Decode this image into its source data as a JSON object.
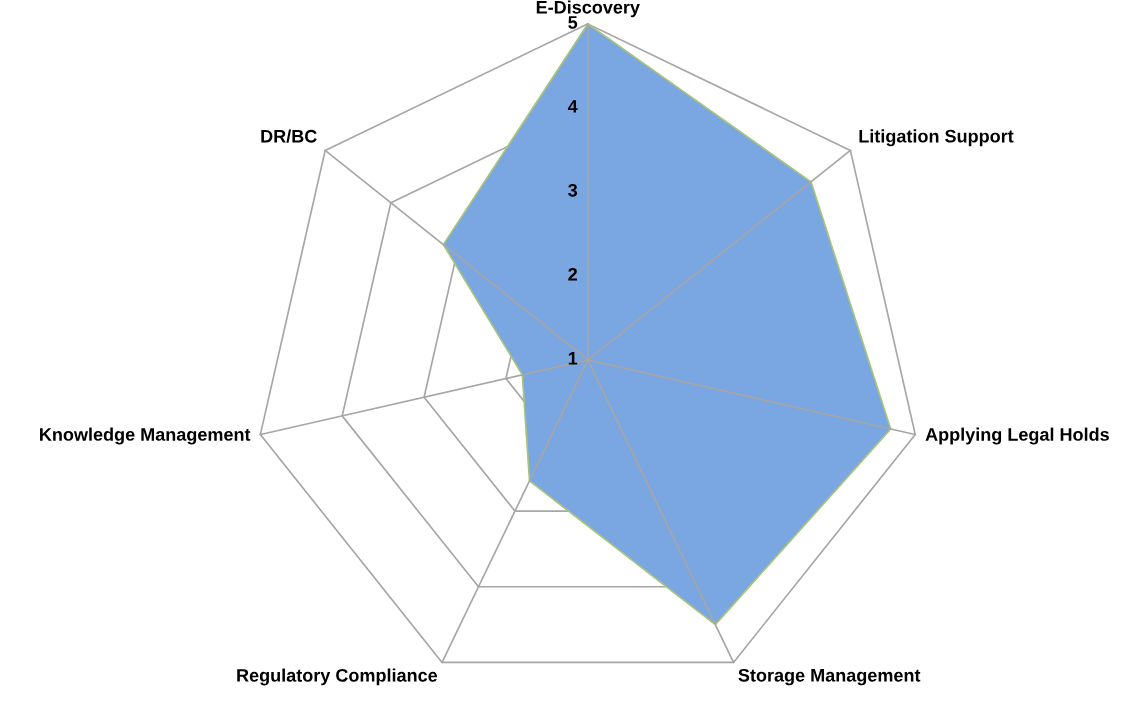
{
  "chart_data": {
    "type": "radar",
    "categories": [
      "E-Discovery",
      "Litigation Support",
      "Applying Legal Holds",
      "Storage Management",
      "Regulatory Compliance",
      "Knowledge Management",
      "DR/BC"
    ],
    "series": [
      {
        "color": "#7aa6e2",
        "values": [
          5,
          4.4,
          4.7,
          4.5,
          2.6,
          1.8,
          3.2
        ]
      }
    ],
    "ylim": [
      1,
      5
    ],
    "yticks": [
      1,
      2,
      3,
      4,
      5
    ],
    "grid": true
  }
}
